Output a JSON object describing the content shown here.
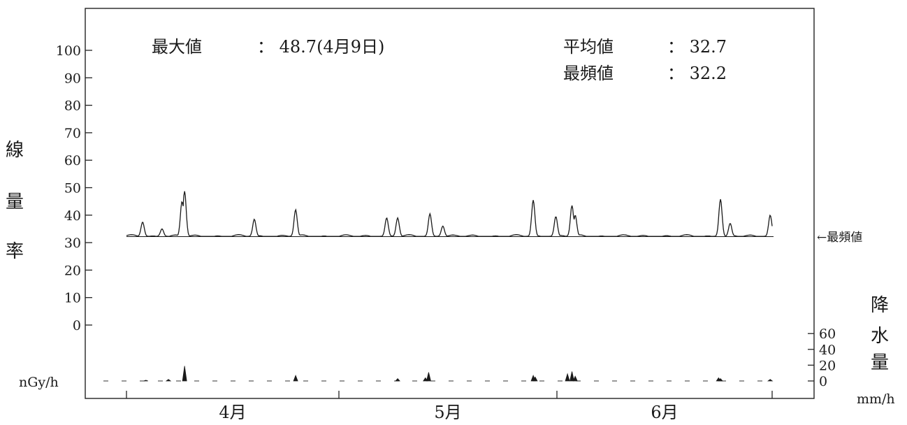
{
  "stats": {
    "max_label": "最大値",
    "max_value": "： 48.7(4月9日)",
    "mean_label": "平均値",
    "mean_value": "： 32.7",
    "mode_label": "最頻値",
    "mode_value": "： 32.2"
  },
  "axes": {
    "left_title": [
      "線",
      "量",
      "率"
    ],
    "left_unit": "nGy/h",
    "right_title": [
      "降",
      "水",
      "量"
    ],
    "right_unit": "mm/h",
    "mode_marker": "←最頻値"
  },
  "chart_data": {
    "type": "line",
    "x_categories": [
      "4月",
      "5月",
      "6月"
    ],
    "left_axis": {
      "ticks": [
        0,
        10,
        20,
        30,
        40,
        50,
        60,
        70,
        80,
        90,
        100
      ],
      "ylim": [
        0,
        110
      ]
    },
    "right_axis": {
      "ticks": [
        0,
        20,
        40,
        60
      ],
      "ylim": [
        0,
        80
      ]
    },
    "dose_rate": {
      "max": 48.7,
      "max_date": "4月9日",
      "mean": 32.7,
      "mode": 32.2,
      "baseline": 32.3,
      "peaks": [
        {
          "x": 0.025,
          "y": 37.5
        },
        {
          "x": 0.055,
          "y": 35.0
        },
        {
          "x": 0.09,
          "y": 48.7
        },
        {
          "x": 0.086,
          "y": 45.0
        },
        {
          "x": 0.198,
          "y": 38.5
        },
        {
          "x": 0.262,
          "y": 42.0
        },
        {
          "x": 0.403,
          "y": 39.0
        },
        {
          "x": 0.42,
          "y": 39.0
        },
        {
          "x": 0.47,
          "y": 40.5
        },
        {
          "x": 0.49,
          "y": 36.0
        },
        {
          "x": 0.63,
          "y": 45.5
        },
        {
          "x": 0.665,
          "y": 39.5
        },
        {
          "x": 0.69,
          "y": 43.5
        },
        {
          "x": 0.695,
          "y": 40.0
        },
        {
          "x": 0.92,
          "y": 45.8
        },
        {
          "x": 0.935,
          "y": 37.0
        },
        {
          "x": 0.997,
          "y": 40.0
        }
      ]
    },
    "precipitation": {
      "unit": "mm/h",
      "spikes": [
        {
          "x": 0.03,
          "y": 1
        },
        {
          "x": 0.065,
          "y": 2
        },
        {
          "x": 0.09,
          "y": 19
        },
        {
          "x": 0.262,
          "y": 7
        },
        {
          "x": 0.42,
          "y": 3
        },
        {
          "x": 0.463,
          "y": 4
        },
        {
          "x": 0.468,
          "y": 11
        },
        {
          "x": 0.63,
          "y": 7
        },
        {
          "x": 0.633,
          "y": 5
        },
        {
          "x": 0.683,
          "y": 9
        },
        {
          "x": 0.69,
          "y": 12
        },
        {
          "x": 0.695,
          "y": 6
        },
        {
          "x": 0.917,
          "y": 4
        },
        {
          "x": 0.92,
          "y": 3
        },
        {
          "x": 0.997,
          "y": 2
        }
      ]
    }
  }
}
